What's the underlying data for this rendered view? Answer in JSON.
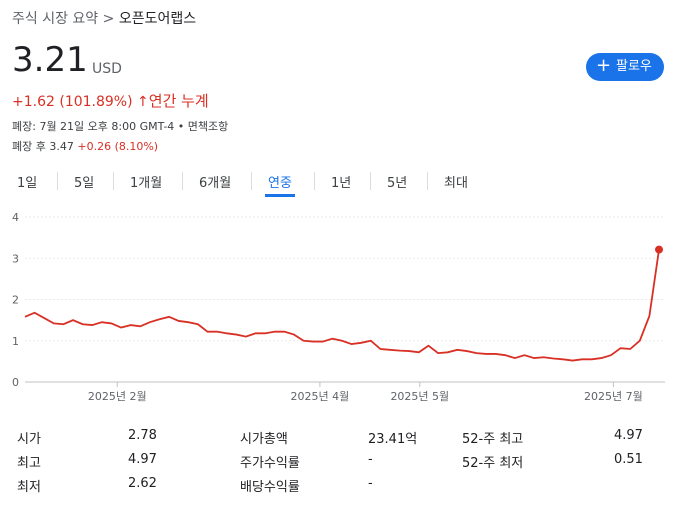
{
  "header": {
    "breadcrumb_parent": "주식 시장 요약",
    "breadcrumb_separator": ">",
    "breadcrumb_current": "오픈도어랩스",
    "price": "3.21",
    "currency": "USD",
    "change": "+1.62 (101.89%)",
    "change_period": "연간 누계",
    "follow_button": "팔로우",
    "close_info": "폐장: 7월 21일 오후 8:00 GMT-4 •",
    "disclaimer": "면책조항",
    "after_hours": "폐장 후 3.47",
    "after_hours_change": "+0.26 (8.10%)"
  },
  "tabs": {
    "items": [
      "1일",
      "5일",
      "1개월",
      "6개월",
      "연중",
      "1년",
      "5년",
      "최대"
    ],
    "selected": "연중"
  },
  "chart_data": {
    "type": "line",
    "color": "#d93025",
    "grid": true,
    "values": [
      1.58,
      1.68,
      1.55,
      1.42,
      1.4,
      1.5,
      1.4,
      1.38,
      1.45,
      1.42,
      1.32,
      1.38,
      1.35,
      1.45,
      1.52,
      1.58,
      1.48,
      1.45,
      1.4,
      1.22,
      1.22,
      1.18,
      1.15,
      1.1,
      1.18,
      1.18,
      1.22,
      1.22,
      1.15,
      1.0,
      0.98,
      0.98,
      1.05,
      1.0,
      0.92,
      0.95,
      1.0,
      0.8,
      0.78,
      0.76,
      0.75,
      0.72,
      0.88,
      0.7,
      0.72,
      0.78,
      0.75,
      0.7,
      0.68,
      0.68,
      0.65,
      0.58,
      0.65,
      0.58,
      0.6,
      0.57,
      0.55,
      0.52,
      0.55,
      0.55,
      0.58,
      0.65,
      0.82,
      0.8,
      1.0,
      1.6,
      3.21
    ],
    "xlim": [
      0,
      66
    ],
    "xticks": [
      {
        "value": 9.6,
        "label": "2025년 2월"
      },
      {
        "value": 30.7,
        "label": "2025년 4월"
      },
      {
        "value": 41.1,
        "label": "2025년 5월"
      },
      {
        "value": 61.25,
        "label": "2025년 7월"
      }
    ],
    "ylim": [
      0,
      4
    ],
    "yticks": [
      0,
      1,
      2,
      3,
      4
    ]
  },
  "stats": {
    "columns": [
      [
        [
          "시가",
          "2.78"
        ],
        [
          "최고",
          "4.97"
        ],
        [
          "최저",
          "2.62"
        ]
      ],
      [
        [
          "시가총액",
          "23.41억"
        ],
        [
          "주가수익률",
          "-"
        ],
        [
          "배당수익률",
          "-"
        ]
      ],
      [
        [
          "52-주 최고",
          "4.97"
        ],
        [
          "52-주 최저",
          "0.51"
        ]
      ]
    ]
  }
}
